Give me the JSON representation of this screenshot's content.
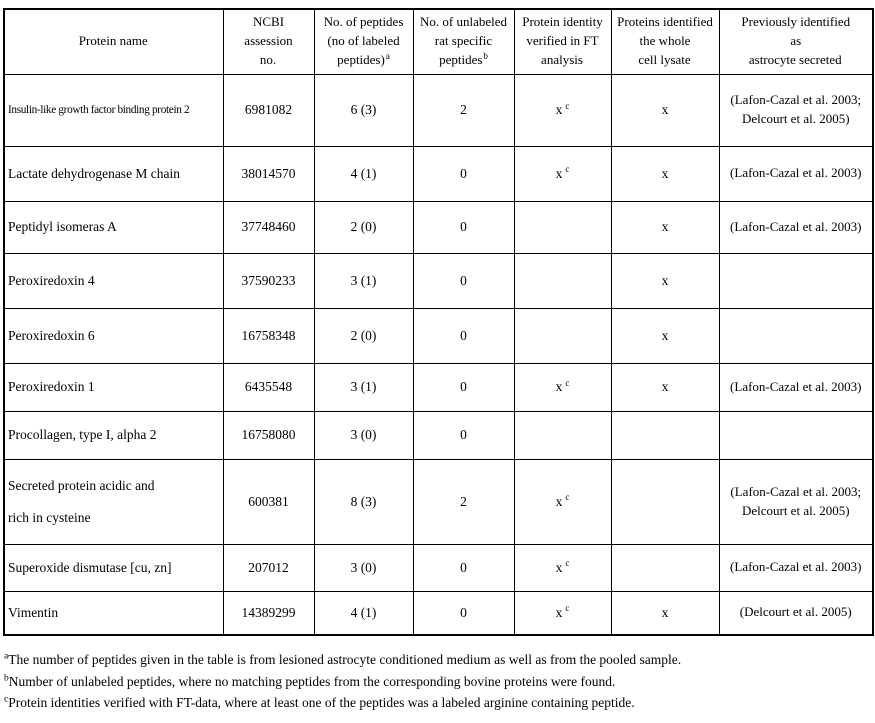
{
  "table": {
    "headers": [
      {
        "text": "Protein name",
        "sup": ""
      },
      {
        "text": "NCBI\nassession\nno.",
        "sup": ""
      },
      {
        "text": "No. of peptides\n(no of labeled\npeptides)",
        "sup": "a"
      },
      {
        "text": "No. of unlabeled\nrat specific\npeptides",
        "sup": "b"
      },
      {
        "text": "Protein identity\nverified in FT\nanalysis",
        "sup": ""
      },
      {
        "text": "Proteins identified\nthe whole\ncell lysate",
        "sup": ""
      },
      {
        "text": "Previously identified\nas\nastrocyte secreted",
        "sup": ""
      }
    ],
    "rows": [
      {
        "name": "Insulin-like growth factor binding protein 2",
        "ncbi": "6981082",
        "peptides": "6 (3)",
        "unlabeled": "2",
        "ft": "x",
        "ft_sup": "c",
        "lysate": "x",
        "prev": "(Lafon-Cazal et al. 2003;\nDelcourt et al. 2005)"
      },
      {
        "name": "Lactate dehydrogenase M chain",
        "ncbi": "38014570",
        "peptides": "4 (1)",
        "unlabeled": "0",
        "ft": "x",
        "ft_sup": "c",
        "lysate": "x",
        "prev": "(Lafon-Cazal et al. 2003)"
      },
      {
        "name": "Peptidyl isomeras A",
        "ncbi": "37748460",
        "peptides": "2 (0)",
        "unlabeled": "0",
        "ft": "",
        "ft_sup": "",
        "lysate": "x",
        "prev": "(Lafon-Cazal et al. 2003)"
      },
      {
        "name": "Peroxiredoxin 4",
        "ncbi": "37590233",
        "peptides": "3 (1)",
        "unlabeled": "0",
        "ft": "",
        "ft_sup": "",
        "lysate": "x",
        "prev": ""
      },
      {
        "name": "Peroxiredoxin 6",
        "ncbi": "16758348",
        "peptides": "2 (0)",
        "unlabeled": "0",
        "ft": "",
        "ft_sup": "",
        "lysate": "x",
        "prev": ""
      },
      {
        "name": "Peroxiredoxin 1",
        "ncbi": "6435548",
        "peptides": "3 (1)",
        "unlabeled": "0",
        "ft": "x",
        "ft_sup": "c",
        "lysate": "x",
        "prev": "(Lafon-Cazal et al. 2003)"
      },
      {
        "name": "Procollagen, type I, alpha 2",
        "ncbi": "16758080",
        "peptides": "3 (0)",
        "unlabeled": "0",
        "ft": "",
        "ft_sup": "",
        "lysate": "",
        "prev": ""
      },
      {
        "name": "Secreted protein acidic and\nrich in cysteine",
        "ncbi": "600381",
        "peptides": "8 (3)",
        "unlabeled": "2",
        "ft": "x",
        "ft_sup": "c",
        "lysate": "",
        "prev": "(Lafon-Cazal et al. 2003;\nDelcourt et al. 2005)"
      },
      {
        "name": "Superoxide dismutase [cu, zn]",
        "ncbi": "207012",
        "peptides": "3 (0)",
        "unlabeled": "0",
        "ft": "x",
        "ft_sup": "c",
        "lysate": "",
        "prev": "(Lafon-Cazal et al. 2003)"
      },
      {
        "name": "Vimentin",
        "ncbi": "14389299",
        "peptides": "4 (1)",
        "unlabeled": "0",
        "ft": "x",
        "ft_sup": "c",
        "lysate": "x",
        "prev": "(Delcourt et al. 2005)"
      }
    ]
  },
  "footnotes": [
    {
      "sup": "a",
      "text": "The number of peptides given in the table is from lesioned astrocyte conditioned medium as well as from the pooled sample."
    },
    {
      "sup": "b",
      "text": "Number of unlabeled peptides, where no matching peptides from the corresponding bovine proteins were found."
    },
    {
      "sup": "c",
      "text": "Protein identities verified with FT-data, where at least one of the peptides was a labeled arginine containing peptide."
    }
  ]
}
